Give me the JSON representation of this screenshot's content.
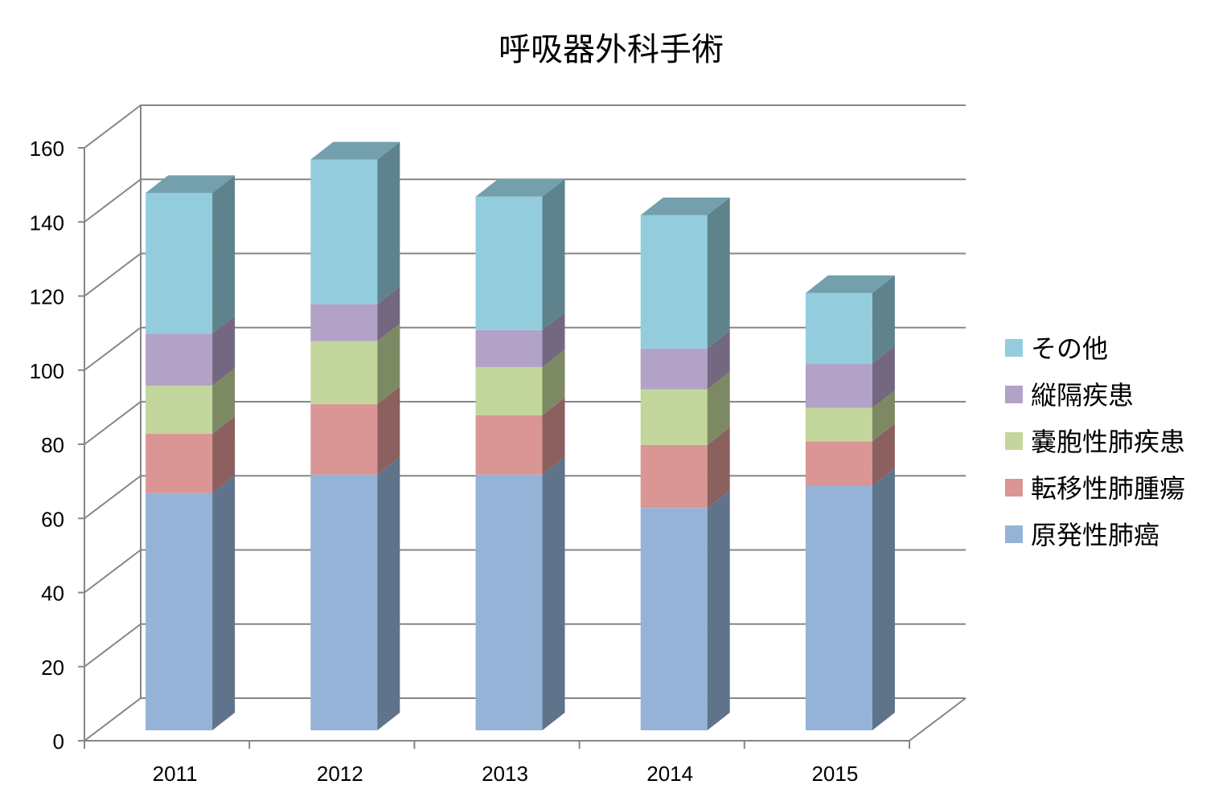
{
  "chart_data": {
    "type": "bar",
    "stacked": true,
    "three_d": true,
    "title": "呼吸器外科手術",
    "xlabel": "",
    "ylabel": "",
    "categories": [
      "2011",
      "2012",
      "2013",
      "2014",
      "2015"
    ],
    "series": [
      {
        "name": "原発性肺癌",
        "color": "#95B3D7",
        "values": [
          64,
          69,
          69,
          60,
          66
        ]
      },
      {
        "name": "転移性肺腫瘍",
        "color": "#D99694",
        "values": [
          16,
          19,
          16,
          17,
          12
        ]
      },
      {
        "name": "嚢胞性肺疾患",
        "color": "#C3D69B",
        "values": [
          13,
          17,
          13,
          15,
          9
        ]
      },
      {
        "name": "縦隔疾患",
        "color": "#B3A2C7",
        "values": [
          14,
          10,
          10,
          11,
          12
        ]
      },
      {
        "name": "その他",
        "color": "#93CDDD",
        "values": [
          38,
          39,
          36,
          36,
          19
        ]
      }
    ],
    "ylim": [
      0,
      160
    ],
    "yticks": [
      0,
      20,
      40,
      60,
      80,
      100,
      120,
      140,
      160
    ],
    "grid": true,
    "legend_position": "right"
  }
}
